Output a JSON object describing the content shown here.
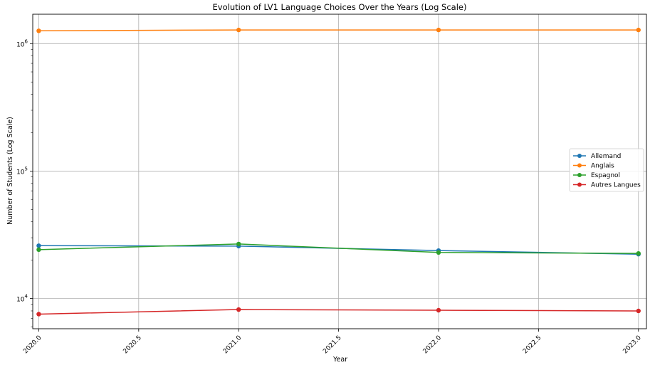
{
  "chart_data": {
    "type": "line",
    "title": "Evolution of LV1 Language Choices Over the Years (Log Scale)",
    "xlabel": "Year",
    "ylabel": "Number of Students (Log Scale)",
    "x": [
      2020,
      2021,
      2022,
      2023
    ],
    "xlim": [
      2019.97,
      2023.04
    ],
    "xticks": [
      "2020.0",
      "2020.5",
      "2021.0",
      "2021.5",
      "2022.0",
      "2022.5",
      "2023.0"
    ],
    "xtick_values": [
      2020.0,
      2020.5,
      2021.0,
      2021.5,
      2022.0,
      2022.5,
      2023.0
    ],
    "yscale": "log",
    "ylim": [
      5800,
      1700000
    ],
    "yticks": [
      {
        "value": 10000,
        "base": "10",
        "exp": "4"
      },
      {
        "value": 100000,
        "base": "10",
        "exp": "5"
      },
      {
        "value": 1000000,
        "base": "10",
        "exp": "6"
      }
    ],
    "grid": true,
    "legend_position": "center-right",
    "series": [
      {
        "name": "Allemand",
        "color": "#1f77b4",
        "values": [
          26000,
          25800,
          23800,
          22300
        ]
      },
      {
        "name": "Anglais",
        "color": "#ff7f0e",
        "values": [
          1260000,
          1280000,
          1280000,
          1280000
        ]
      },
      {
        "name": "Espagnol",
        "color": "#2ca02c",
        "values": [
          24200,
          26800,
          23000,
          22600
        ]
      },
      {
        "name": "Autres Langues",
        "color": "#d62728",
        "values": [
          7550,
          8200,
          8100,
          8000
        ]
      }
    ]
  }
}
